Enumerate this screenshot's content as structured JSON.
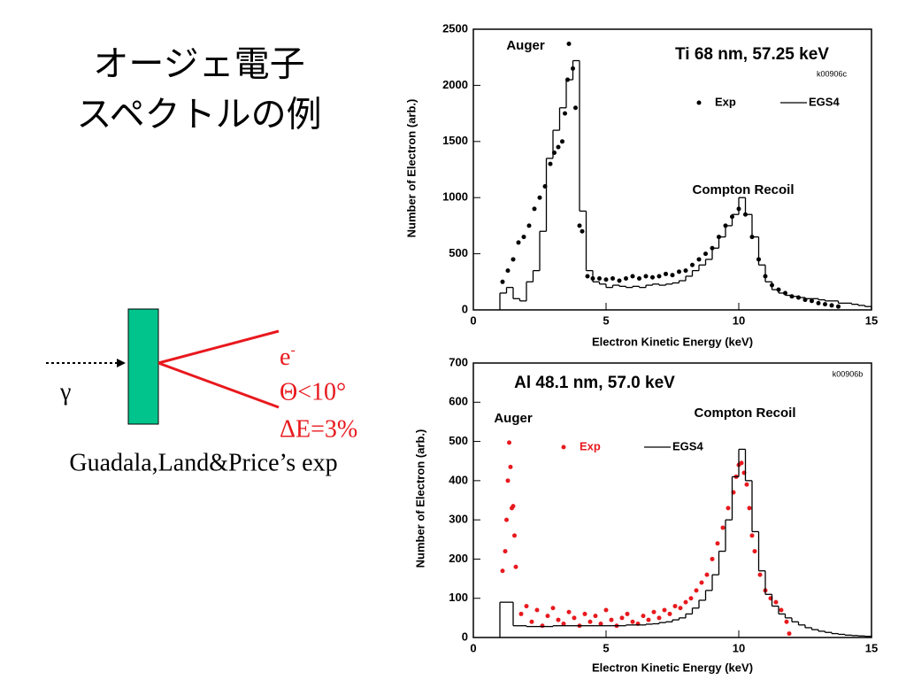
{
  "slide": {
    "title_lines": [
      "オージェ電子",
      "スペクトルの例"
    ],
    "diagram": {
      "incident": "γ",
      "electron": "e",
      "electron_sup": "-",
      "angle": "Θ<10°",
      "resolution": "ΔE=3%",
      "caption": "Guadala,Land&Price’s exp"
    }
  },
  "chart_data": [
    {
      "type": "scatter_step",
      "title": "Ti 68 nm, 57.25 keV",
      "annotations": [
        "k00906c",
        "Auger",
        "Compton Recoil"
      ],
      "x_label": "Electron Kinetic Energy (keV)",
      "y_label": "Number of Electron (arb.)",
      "xlim": [
        0,
        15
      ],
      "xticks": [
        0,
        5,
        10,
        15
      ],
      "ylim": [
        0,
        2500
      ],
      "yticks": [
        0,
        500,
        1000,
        1500,
        2000,
        2500
      ],
      "series": [
        {
          "name": "Exp",
          "color": "#000000",
          "x": [
            1.1,
            1.3,
            1.5,
            1.7,
            1.9,
            2.1,
            2.3,
            2.5,
            2.7,
            2.9,
            3.05,
            3.2,
            3.35,
            3.45,
            3.55,
            3.6,
            3.75,
            3.85,
            4.0,
            4.1,
            4.3,
            4.5,
            4.75,
            5.0,
            5.25,
            5.5,
            5.75,
            6.0,
            6.25,
            6.5,
            6.75,
            7.0,
            7.25,
            7.5,
            7.75,
            8.0,
            8.25,
            8.5,
            8.75,
            9.0,
            9.25,
            9.5,
            9.75,
            10.0,
            10.25,
            10.5,
            10.75,
            11.0,
            11.25,
            11.5,
            11.75,
            12.0,
            12.25,
            12.5,
            12.75,
            13.0,
            13.25,
            13.5,
            13.75
          ],
          "values": [
            250,
            350,
            450,
            600,
            650,
            750,
            900,
            1000,
            1100,
            1300,
            1400,
            1450,
            1500,
            1750,
            2050,
            2370,
            2150,
            1800,
            750,
            700,
            300,
            280,
            280,
            270,
            280,
            260,
            280,
            300,
            280,
            300,
            290,
            300,
            320,
            310,
            340,
            350,
            400,
            450,
            500,
            550,
            650,
            750,
            830,
            900,
            850,
            650,
            450,
            300,
            220,
            180,
            150,
            120,
            110,
            90,
            80,
            60,
            50,
            40,
            30
          ]
        },
        {
          "name": "EGS4",
          "color": "#000000",
          "bins": [
            1.0,
            1.25,
            1.5,
            1.75,
            2.0,
            2.25,
            2.5,
            2.75,
            3.0,
            3.25,
            3.5,
            3.75,
            4.0,
            4.25,
            4.5,
            4.75,
            5.0,
            5.25,
            5.5,
            5.75,
            6.0,
            6.25,
            6.5,
            6.75,
            7.0,
            7.25,
            7.5,
            7.75,
            8.0,
            8.25,
            8.5,
            8.75,
            9.0,
            9.25,
            9.5,
            9.75,
            10.0,
            10.25,
            10.5,
            10.75,
            11.0,
            11.25,
            11.5,
            11.75,
            12.0,
            12.25,
            12.5,
            12.75,
            13.0,
            13.25,
            13.5,
            13.75,
            14.0,
            14.25,
            14.5,
            14.75,
            15.0
          ],
          "values": [
            150,
            200,
            100,
            80,
            250,
            350,
            700,
            1350,
            1600,
            1800,
            2050,
            2220,
            880,
            350,
            250,
            230,
            200,
            220,
            210,
            200,
            210,
            200,
            220,
            230,
            220,
            230,
            240,
            260,
            300,
            350,
            400,
            450,
            550,
            650,
            750,
            850,
            1000,
            850,
            650,
            400,
            250,
            180,
            150,
            130,
            120,
            110,
            100,
            100,
            90,
            80,
            80,
            60,
            60,
            50,
            40,
            30
          ]
        }
      ]
    },
    {
      "type": "scatter_step",
      "title": "Al 48.1 nm, 57.0 keV",
      "annotations": [
        "k00906b",
        "Auger",
        "Compton Recoil"
      ],
      "x_label": "Electron Kinetic Energy (keV)",
      "y_label": "Number of Electron (arb.)",
      "xlim": [
        0,
        15
      ],
      "xticks": [
        0,
        5,
        10,
        15
      ],
      "ylim": [
        0,
        700
      ],
      "yticks": [
        0,
        100,
        200,
        300,
        400,
        500,
        600,
        700
      ],
      "series": [
        {
          "name": "Exp",
          "color": "#e8191e",
          "x": [
            1.1,
            1.2,
            1.25,
            1.3,
            1.35,
            1.4,
            1.45,
            1.5,
            1.55,
            1.6,
            1.8,
            2.0,
            2.2,
            2.4,
            2.6,
            2.8,
            3.0,
            3.2,
            3.4,
            3.6,
            3.8,
            4.0,
            4.2,
            4.4,
            4.6,
            4.8,
            5.0,
            5.2,
            5.4,
            5.6,
            5.8,
            6.0,
            6.2,
            6.4,
            6.6,
            6.8,
            7.0,
            7.2,
            7.4,
            7.6,
            7.8,
            8.0,
            8.2,
            8.4,
            8.6,
            8.8,
            9.0,
            9.2,
            9.4,
            9.6,
            9.8,
            9.9,
            10.0,
            10.1,
            10.2,
            10.3,
            10.4,
            10.5,
            10.6,
            10.8,
            11.0,
            11.2,
            11.4,
            11.6,
            11.8,
            11.9
          ],
          "values": [
            170,
            220,
            300,
            400,
            497,
            435,
            330,
            335,
            260,
            180,
            60,
            80,
            40,
            70,
            30,
            55,
            75,
            45,
            35,
            65,
            50,
            30,
            60,
            40,
            55,
            35,
            70,
            45,
            30,
            50,
            60,
            40,
            35,
            55,
            45,
            65,
            50,
            70,
            60,
            80,
            75,
            90,
            100,
            120,
            140,
            160,
            200,
            240,
            280,
            330,
            370,
            410,
            440,
            445,
            420,
            390,
            330,
            260,
            220,
            160,
            120,
            100,
            90,
            70,
            40,
            10
          ]
        },
        {
          "name": "EGS4",
          "color": "#000000",
          "bins": [
            1.0,
            1.25,
            1.5,
            1.75,
            2.0,
            2.25,
            2.5,
            2.75,
            3.0,
            3.25,
            3.5,
            3.75,
            4.0,
            4.25,
            4.5,
            4.75,
            5.0,
            5.25,
            5.5,
            5.75,
            6.0,
            6.25,
            6.5,
            6.75,
            7.0,
            7.25,
            7.5,
            7.75,
            8.0,
            8.25,
            8.5,
            8.75,
            9.0,
            9.25,
            9.5,
            9.75,
            10.0,
            10.25,
            10.5,
            10.75,
            11.0,
            11.25,
            11.5,
            11.75,
            12.0,
            12.25,
            12.5,
            12.75,
            13.0,
            13.25,
            13.5,
            13.75,
            14.0,
            14.25,
            14.5,
            14.75,
            15.0
          ],
          "values": [
            90,
            90,
            30,
            30,
            28,
            28,
            28,
            28,
            30,
            30,
            30,
            30,
            30,
            30,
            30,
            30,
            30,
            30,
            30,
            32,
            32,
            32,
            34,
            35,
            38,
            40,
            45,
            50,
            60,
            75,
            95,
            120,
            160,
            220,
            300,
            410,
            480,
            400,
            270,
            170,
            110,
            80,
            60,
            50,
            40,
            32,
            25,
            20,
            16,
            13,
            10,
            8,
            6,
            5,
            4,
            3
          ]
        }
      ]
    }
  ]
}
